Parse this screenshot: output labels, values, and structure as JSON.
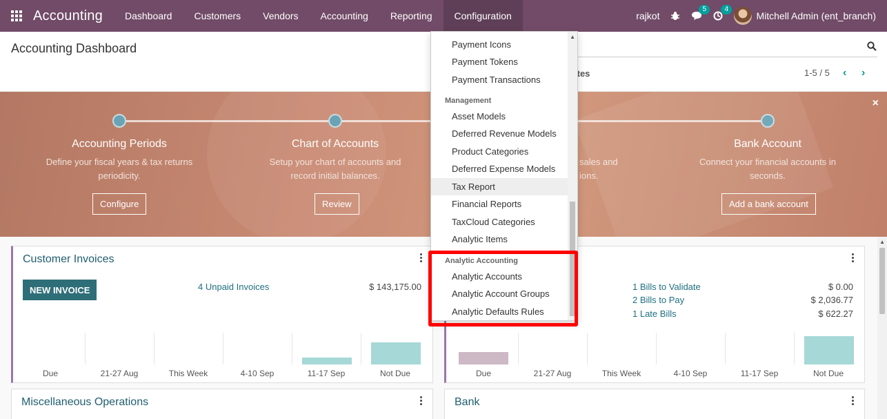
{
  "navbar": {
    "brand": "Accounting",
    "menu": [
      "Dashboard",
      "Customers",
      "Vendors",
      "Accounting",
      "Reporting",
      "Configuration"
    ],
    "company": "rajkot",
    "messages_count": "5",
    "activities_count": "4",
    "user": "Mitchell Admin (ent_branch)"
  },
  "control_panel": {
    "title": "Accounting Dashboard",
    "favorites_label": "orites",
    "pager": "1-5 / 5"
  },
  "banner": {
    "steps": [
      {
        "title": "Accounting Periods",
        "desc1": "Define your fiscal years & tax returns",
        "desc2": "periodicity.",
        "button": "Configure"
      },
      {
        "title": "Chart of Accounts",
        "desc1": "Setup your chart of accounts and",
        "desc2": "record initial balances.",
        "button": "Review"
      },
      {
        "title": "",
        "desc1": "sales and",
        "desc2": "ions.",
        "button": ""
      },
      {
        "title": "Bank Account",
        "desc1": "Connect your financial accounts in",
        "desc2": "seconds.",
        "button": "Add a bank account"
      }
    ],
    "close": "×"
  },
  "dropdown": {
    "items_top": [
      "Payment Icons",
      "Payment Tokens",
      "Payment Transactions"
    ],
    "header_management": "Management",
    "items_management": [
      "Asset Models",
      "Deferred Revenue Models",
      "Product Categories",
      "Deferred Expense Models",
      "Tax Report",
      "Financial Reports",
      "TaxCloud Categories",
      "Analytic Items"
    ],
    "header_analytic": "Analytic Accounting",
    "items_analytic": [
      "Analytic Accounts",
      "Analytic Account Groups",
      "Analytic Defaults Rules"
    ]
  },
  "customer_invoices": {
    "title": "Customer Invoices",
    "button": "NEW INVOICE",
    "unpaid_link": "4 Unpaid Invoices",
    "unpaid_amount": "$ 143,175.00",
    "chart_labels": [
      "Due",
      "21-27 Aug",
      "This Week",
      "4-10 Sep",
      "11-17 Sep",
      "Not Due"
    ],
    "chart_values": [
      0,
      0,
      0,
      0,
      0.22,
      0.7
    ]
  },
  "vendor_bills": {
    "rows": [
      {
        "label": "1 Bills to Validate",
        "amount": "$ 0.00"
      },
      {
        "label": "2 Bills to Pay",
        "amount": "$ 2,036.77"
      },
      {
        "label": "1 Late Bills",
        "amount": "$ 622.27"
      }
    ],
    "chart_labels": [
      "Due",
      "21-27 Aug",
      "This Week",
      "4-10 Sep",
      "11-17 Sep",
      "Not Due"
    ],
    "chart_values": [
      0.4,
      0,
      0,
      0,
      0,
      0.9
    ]
  },
  "misc_operations": {
    "title": "Miscellaneous Operations"
  },
  "bank": {
    "title": "Bank"
  },
  "colors": {
    "navbar": "#714b67",
    "accent": "#00a09d",
    "highlight": "#ff0000"
  }
}
